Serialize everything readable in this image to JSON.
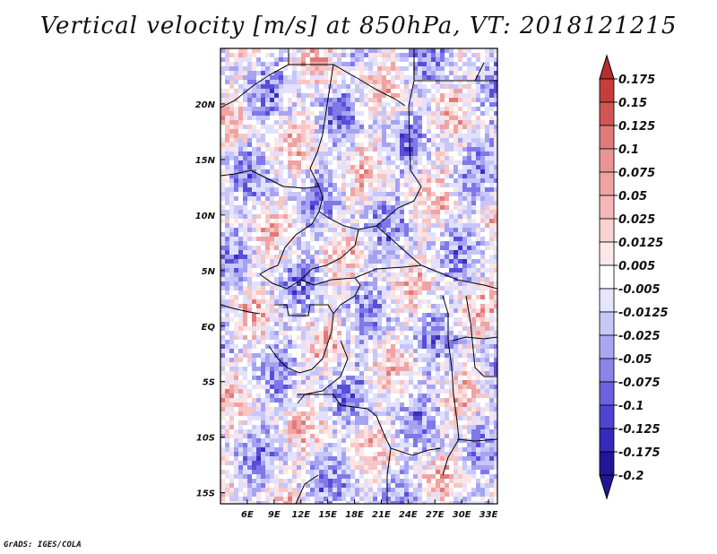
{
  "title": "Vertical velocity [m/s] at 850hPa, VT: 2018121215",
  "credit": "GrADS: IGES/COLA",
  "map": {
    "lon_range": [
      3,
      34
    ],
    "lat_range": [
      -16,
      25
    ],
    "lon_ticks": [
      {
        "value": 6,
        "label": "6E"
      },
      {
        "value": 9,
        "label": "9E"
      },
      {
        "value": 12,
        "label": "12E"
      },
      {
        "value": 15,
        "label": "15E"
      },
      {
        "value": 18,
        "label": "18E"
      },
      {
        "value": 21,
        "label": "21E"
      },
      {
        "value": 24,
        "label": "24E"
      },
      {
        "value": 27,
        "label": "27E"
      },
      {
        "value": 30,
        "label": "30E"
      },
      {
        "value": 33,
        "label": "33E"
      }
    ],
    "lat_ticks": [
      {
        "value": 20,
        "label": "20N"
      },
      {
        "value": 15,
        "label": "15N"
      },
      {
        "value": 10,
        "label": "10N"
      },
      {
        "value": 5,
        "label": "5N"
      },
      {
        "value": 0,
        "label": "EQ"
      },
      {
        "value": -5,
        "label": "5S"
      },
      {
        "value": -10,
        "label": "10S"
      },
      {
        "value": -15,
        "label": "15S"
      }
    ],
    "field_colors": [
      "#2a1a9a",
      "#3b2fc0",
      "#5a4ed8",
      "#7f78e8",
      "#a6a3f2",
      "#c7c6f9",
      "#e2e1fd",
      "#ffffff",
      "#fde4e4",
      "#f7c6c6",
      "#efa3a3",
      "#e07a7a",
      "#d05656",
      "#b52f2f",
      "#9b1818"
    ]
  },
  "colorbar": {
    "labels": [
      "0.175",
      "0.15",
      "0.125",
      "0.1",
      "0.075",
      "0.05",
      "0.025",
      "0.0125",
      "0.005",
      "-0.005",
      "-0.0125",
      "-0.025",
      "-0.05",
      "-0.075",
      "-0.1",
      "-0.125",
      "-0.175",
      "-0.2"
    ],
    "colors": [
      "#b52f2f",
      "#c53d3d",
      "#d05656",
      "#e07a7a",
      "#e99595",
      "#efa3a3",
      "#f4b8b8",
      "#f9d2d2",
      "#fde8e8",
      "#ffffff",
      "#e6e5fd",
      "#c9c7f8",
      "#aaa7f2",
      "#8a84eb",
      "#6b62e0",
      "#4e44d2",
      "#3629bd",
      "#221596"
    ]
  }
}
